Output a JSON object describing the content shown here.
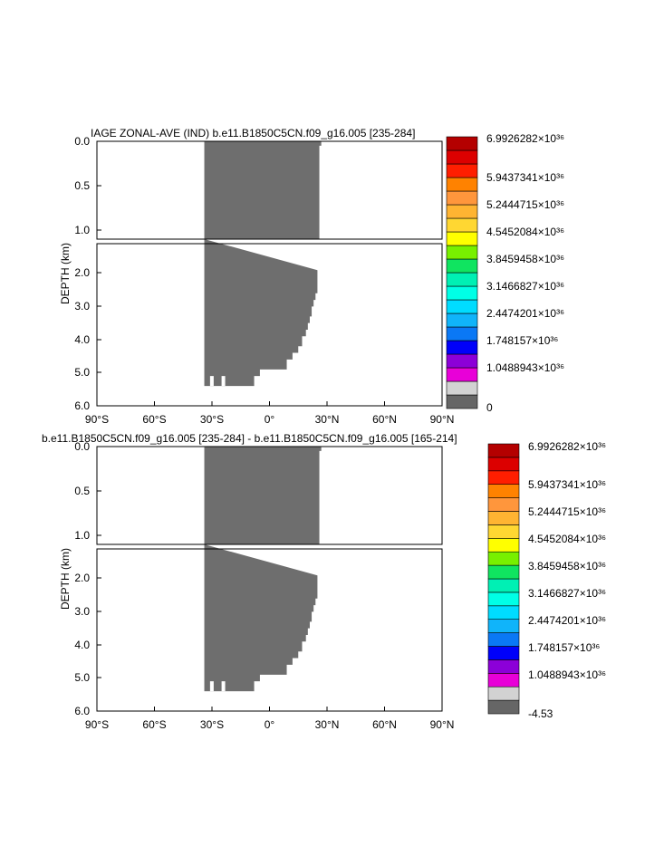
{
  "palette": [
    "#666666",
    "#d2d2d2",
    "#e800d8",
    "#8c00d8",
    "#0000fa",
    "#0a78f5",
    "#10b4fa",
    "#00dcff",
    "#00ffe6",
    "#00f0b4",
    "#10e460",
    "#78f000",
    "#ffff00",
    "#ffd732",
    "#ffb432",
    "#ff963c",
    "#ff8200",
    "#ff1e00",
    "#dc0000",
    "#b40000"
  ],
  "shade_color": "#6e6e6e",
  "chart_data": [
    {
      "type": "heatmap",
      "title": "IAGE ZONAL-AVE (IND) b.e11.B1850C5CN.f09_g16.005 [235-284]",
      "xlabel": "",
      "ylabel": "DEPTH (km)",
      "x_ticks": [
        "90°S",
        "60°S",
        "30°S",
        "0°",
        "30°N",
        "60°N",
        "90°N"
      ],
      "x_range": [
        -90,
        90
      ],
      "y_ticks_upper": [
        "0.0",
        "0.5",
        "1.0"
      ],
      "y_ticks_lower": [
        "2.0",
        "3.0",
        "4.0",
        "5.0",
        "6.0"
      ],
      "y_range": [
        0,
        6
      ],
      "colorbar_labels": [
        "6.9926282×10³⁶",
        "5.9437341×10³⁶",
        "5.2444715×10³⁶",
        "4.5452084×10³⁶",
        "3.8459458×10³⁶",
        "3.1466827×10³⁶",
        "2.4474201×10³⁶",
        "1.748157×10³⁶",
        "1.0488943×10³⁶",
        "0"
      ],
      "filled_region": {
        "west_edge_deg": -34,
        "value_class": "lowest",
        "east_edge_by_depth": [
          {
            "depth_km": 0.0,
            "lat_deg": 27
          },
          {
            "depth_km": 0.05,
            "lat_deg": 26
          },
          {
            "depth_km": 1.9,
            "lat_deg": 25
          },
          {
            "depth_km": 2.6,
            "lat_deg": 24
          },
          {
            "depth_km": 2.8,
            "lat_deg": 23
          },
          {
            "depth_km": 3.0,
            "lat_deg": 22
          },
          {
            "depth_km": 3.3,
            "lat_deg": 21
          },
          {
            "depth_km": 3.5,
            "lat_deg": 20
          },
          {
            "depth_km": 3.7,
            "lat_deg": 19
          },
          {
            "depth_km": 3.9,
            "lat_deg": 17
          },
          {
            "depth_km": 4.2,
            "lat_deg": 15
          },
          {
            "depth_km": 4.4,
            "lat_deg": 12
          },
          {
            "depth_km": 4.6,
            "lat_deg": 9
          },
          {
            "depth_km": 4.9,
            "lat_deg": -5
          },
          {
            "depth_km": 5.1,
            "lat_deg": -8
          },
          {
            "depth_km": 5.2,
            "lat_deg": -8
          },
          {
            "depth_km": 5.4,
            "lat_deg": -8
          }
        ]
      }
    },
    {
      "type": "heatmap",
      "title": "b.e11.B1850C5CN.f09_g16.005 [235-284] - b.e11.B1850C5CN.f09_g16.005 [165-214]",
      "xlabel": "",
      "ylabel": "DEPTH (km)",
      "x_ticks": [
        "90°S",
        "60°S",
        "30°S",
        "0°",
        "30°N",
        "60°N",
        "90°N"
      ],
      "x_range": [
        -90,
        90
      ],
      "y_ticks_upper": [
        "0.0",
        "0.5",
        "1.0"
      ],
      "y_ticks_lower": [
        "2.0",
        "3.0",
        "4.0",
        "5.0",
        "6.0"
      ],
      "y_range": [
        0,
        6
      ],
      "colorbar_labels": [
        "6.9926282×10³⁶",
        "5.9437341×10³⁶",
        "5.2444715×10³⁶",
        "4.5452084×10³⁶",
        "3.8459458×10³⁶",
        "3.1466827×10³⁶",
        "2.4474201×10³⁶",
        "1.748157×10³⁶",
        "1.0488943×10³⁶",
        "-4.53"
      ],
      "filled_region": {
        "west_edge_deg": -34,
        "value_class": "lowest",
        "east_edge_by_depth": [
          {
            "depth_km": 0.0,
            "lat_deg": 27
          },
          {
            "depth_km": 0.05,
            "lat_deg": 26
          },
          {
            "depth_km": 1.9,
            "lat_deg": 25
          },
          {
            "depth_km": 2.6,
            "lat_deg": 24
          },
          {
            "depth_km": 2.8,
            "lat_deg": 23
          },
          {
            "depth_km": 3.0,
            "lat_deg": 22
          },
          {
            "depth_km": 3.3,
            "lat_deg": 21
          },
          {
            "depth_km": 3.5,
            "lat_deg": 20
          },
          {
            "depth_km": 3.7,
            "lat_deg": 19
          },
          {
            "depth_km": 3.9,
            "lat_deg": 17
          },
          {
            "depth_km": 4.2,
            "lat_deg": 15
          },
          {
            "depth_km": 4.4,
            "lat_deg": 12
          },
          {
            "depth_km": 4.6,
            "lat_deg": 9
          },
          {
            "depth_km": 4.9,
            "lat_deg": -5
          },
          {
            "depth_km": 5.1,
            "lat_deg": -8
          },
          {
            "depth_km": 5.2,
            "lat_deg": -8
          },
          {
            "depth_km": 5.4,
            "lat_deg": -8
          }
        ]
      }
    }
  ]
}
